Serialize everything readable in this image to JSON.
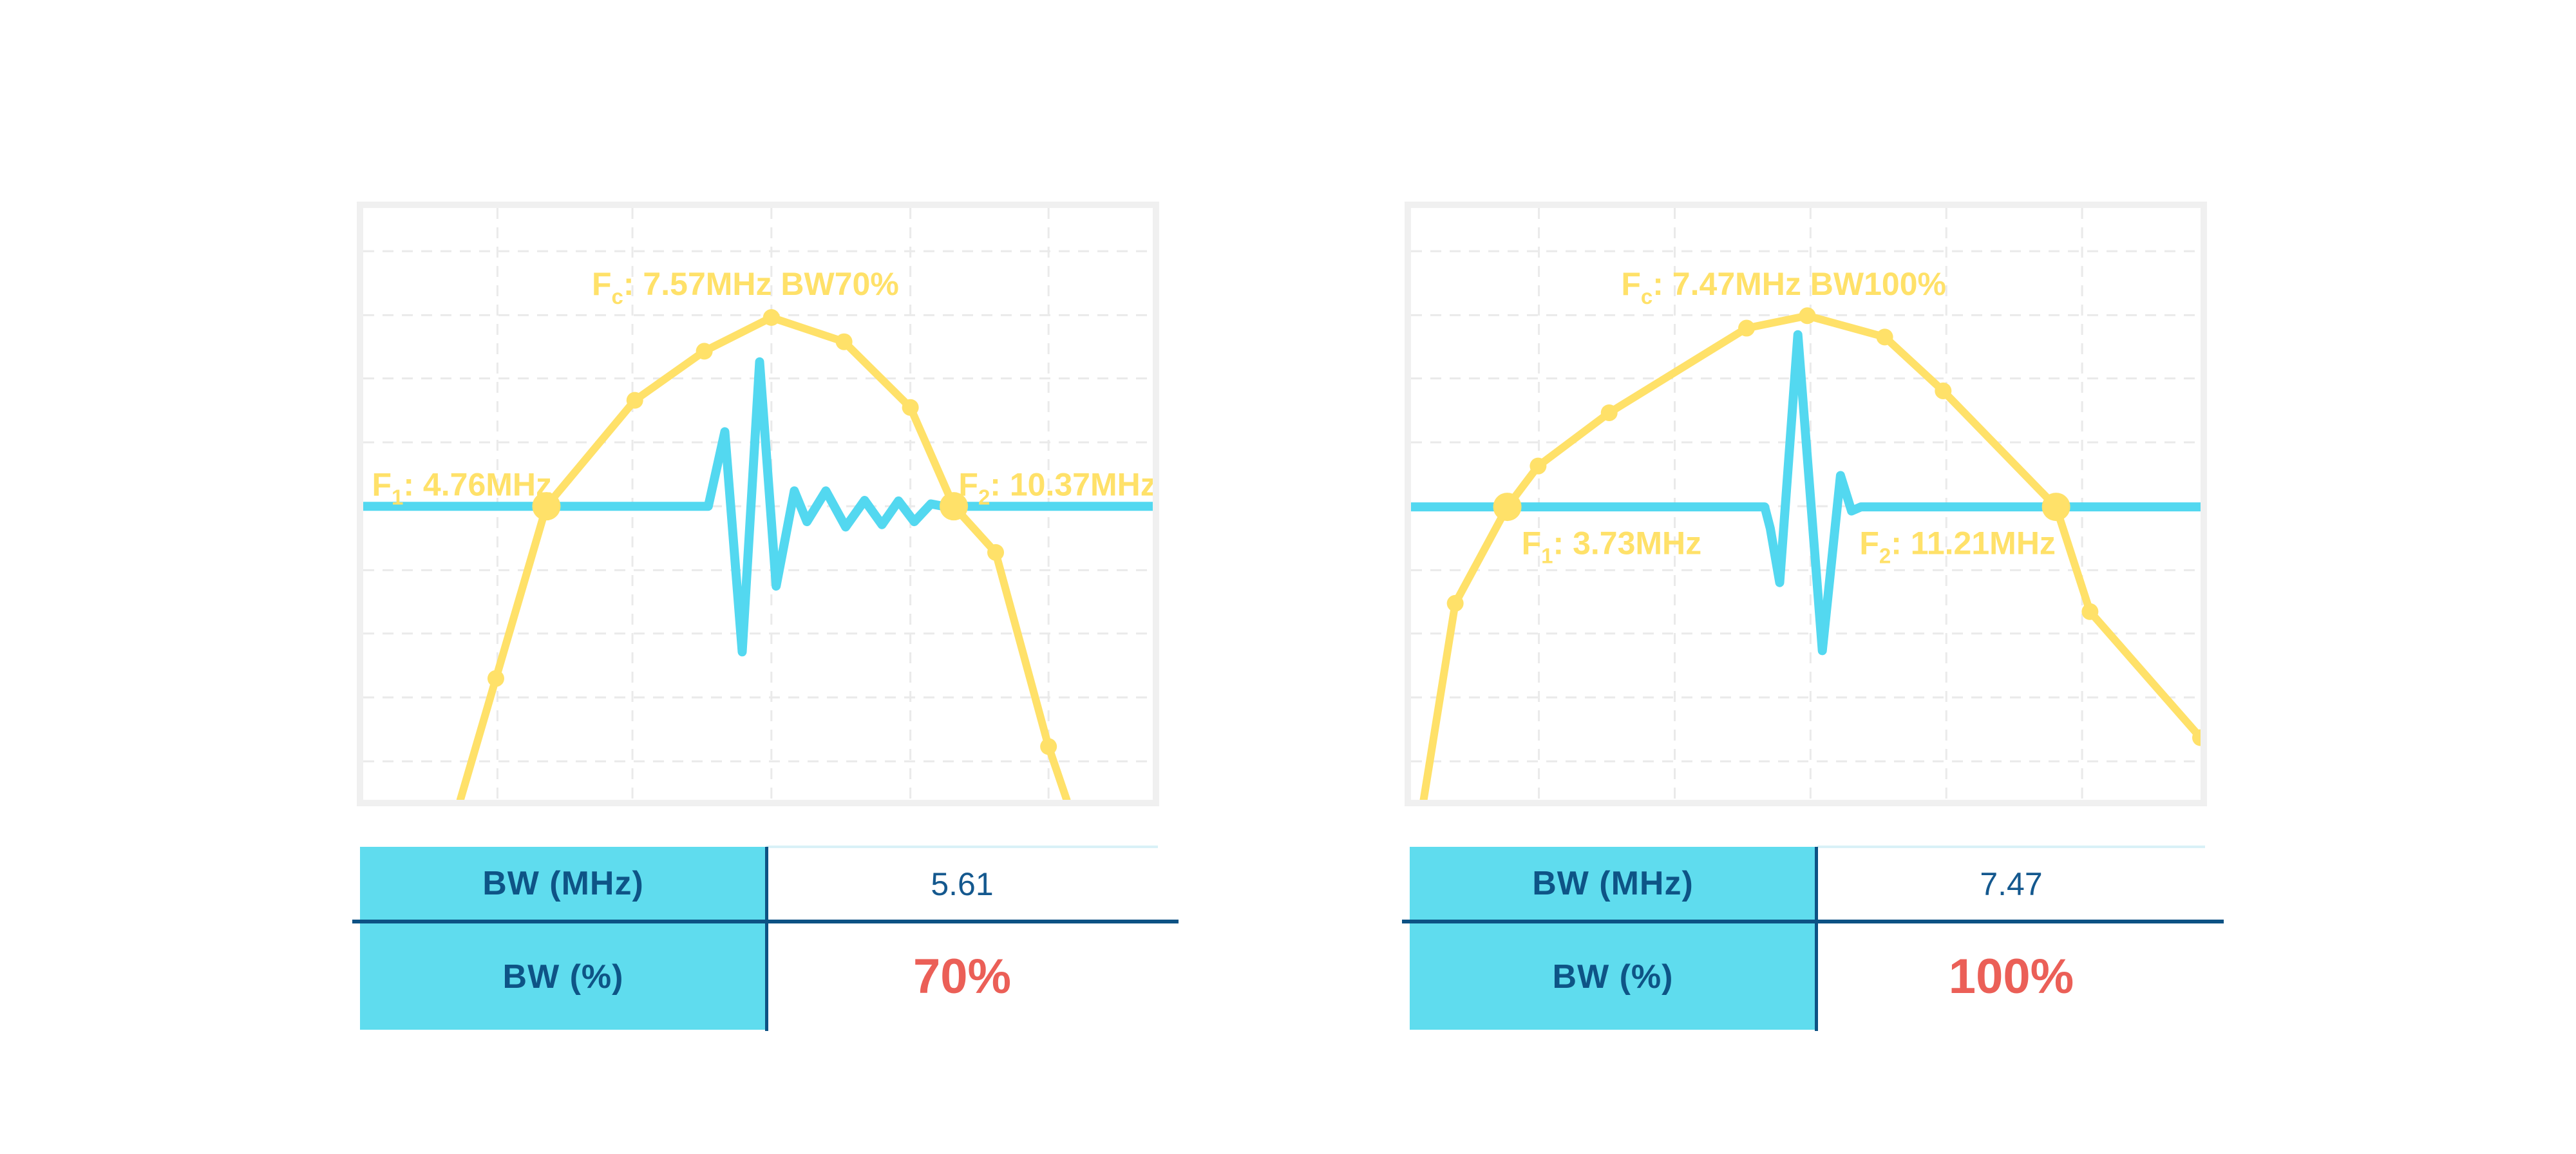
{
  "colors": {
    "yellow": "#FFE169",
    "cyan": "#53D8F0",
    "table_cyan": "#5FDCEE",
    "navy_text": "#14588E",
    "navy_line": "#0D5284",
    "red": "#EB5F57",
    "grid": "#EAEAEA",
    "panel_border": "#F0F0F0",
    "value_top_line": "#D9F1F7"
  },
  "chart_data": [
    {
      "type": "line",
      "name": "pulse-spectrum-bw70",
      "title": "Fc: 7.57MHz BW70%",
      "annotations": {
        "fc_mhz": 7.57,
        "bw_percent": 70,
        "f1_mhz": 4.76,
        "f2_mhz": 10.37,
        "bw_mhz": 5.61
      },
      "grid_x": [
        0.17,
        0.341,
        0.517,
        0.693,
        0.868
      ],
      "grid_y": [
        0.073,
        0.181,
        0.288,
        0.396,
        0.504,
        0.612,
        0.719,
        0.827,
        0.935
      ],
      "labels": [
        {
          "name": "fc-label",
          "parts": [
            "F",
            "c",
            ": 7.57MHz BW70%"
          ],
          "x": 0.484,
          "y": 0.147,
          "anchor": "middle"
        },
        {
          "name": "f1-label",
          "parts": [
            "F",
            "1",
            ": 4.76MHz"
          ],
          "x": 0.011,
          "y": 0.486,
          "anchor": "start"
        },
        {
          "name": "f2-label",
          "parts": [
            "F",
            "2",
            ": 10.37MHz"
          ],
          "x": 0.754,
          "y": 0.486,
          "anchor": "start"
        }
      ],
      "series": [
        {
          "name": "pulse-waveform",
          "color_key": "cyan",
          "width": 14,
          "points": [
            [
              0.0,
              0.504
            ],
            [
              0.437,
              0.504
            ],
            [
              0.458,
              0.378
            ],
            [
              0.48,
              0.75
            ],
            [
              0.502,
              0.26
            ],
            [
              0.523,
              0.639
            ],
            [
              0.546,
              0.478
            ],
            [
              0.562,
              0.53
            ],
            [
              0.586,
              0.478
            ],
            [
              0.611,
              0.539
            ],
            [
              0.635,
              0.494
            ],
            [
              0.657,
              0.535
            ],
            [
              0.678,
              0.495
            ],
            [
              0.698,
              0.53
            ],
            [
              0.719,
              0.5
            ],
            [
              0.735,
              0.504
            ],
            [
              1.0,
              0.504
            ]
          ]
        },
        {
          "name": "spectrum-curve",
          "color_key": "yellow",
          "width": 12,
          "points": [
            [
              0.123,
              1.0
            ],
            [
              0.168,
              0.795
            ],
            [
              0.232,
              0.504
            ],
            [
              0.344,
              0.325
            ],
            [
              0.432,
              0.242
            ],
            [
              0.517,
              0.185
            ],
            [
              0.609,
              0.226
            ],
            [
              0.693,
              0.337
            ],
            [
              0.748,
              0.504
            ],
            [
              0.801,
              0.582
            ],
            [
              0.868,
              0.91
            ],
            [
              0.891,
              1.0
            ]
          ],
          "small_markers": [
            1,
            3,
            4,
            5,
            6,
            7,
            9,
            10
          ],
          "big_markers": [
            2,
            8
          ]
        }
      ],
      "table": {
        "rows": [
          {
            "label": "BW (MHz)",
            "value": "5.61",
            "style": "navy"
          },
          {
            "label": "BW (%)",
            "value": "70%",
            "style": "red"
          }
        ]
      }
    },
    {
      "type": "line",
      "name": "pulse-spectrum-bw100",
      "title": "Fc: 7.47MHz BW100%",
      "annotations": {
        "fc_mhz": 7.47,
        "bw_percent": 100,
        "f1_mhz": 3.73,
        "f2_mhz": 11.21,
        "bw_mhz": 7.47
      },
      "grid_x": [
        0.162,
        0.334,
        0.506,
        0.678,
        0.85
      ],
      "grid_y": [
        0.073,
        0.181,
        0.288,
        0.396,
        0.504,
        0.612,
        0.719,
        0.827,
        0.935
      ],
      "labels": [
        {
          "name": "fc-label",
          "parts": [
            "F",
            "c",
            ": 7.47MHz BW100%"
          ],
          "x": 0.472,
          "y": 0.147,
          "anchor": "middle"
        },
        {
          "name": "f1-label",
          "parts": [
            "F",
            "1",
            ": 3.73MHz"
          ],
          "x": 0.14,
          "y": 0.585,
          "anchor": "start"
        },
        {
          "name": "f2-label",
          "parts": [
            "F",
            "2",
            ": 11.21MHz"
          ],
          "x": 0.568,
          "y": 0.585,
          "anchor": "start"
        }
      ],
      "series": [
        {
          "name": "pulse-waveform",
          "color_key": "cyan",
          "width": 14,
          "points": [
            [
              0.0,
              0.505
            ],
            [
              0.448,
              0.505
            ],
            [
              0.455,
              0.541
            ],
            [
              0.467,
              0.633
            ],
            [
              0.49,
              0.214
            ],
            [
              0.521,
              0.748
            ],
            [
              0.544,
              0.452
            ],
            [
              0.558,
              0.512
            ],
            [
              0.57,
              0.505
            ],
            [
              1.0,
              0.505
            ]
          ]
        },
        {
          "name": "spectrum-curve",
          "color_key": "yellow",
          "width": 12,
          "points": [
            [
              0.016,
              1.0
            ],
            [
              0.056,
              0.668
            ],
            [
              0.122,
              0.505
            ],
            [
              0.161,
              0.436
            ],
            [
              0.251,
              0.346
            ],
            [
              0.425,
              0.203
            ],
            [
              0.502,
              0.182
            ],
            [
              0.6,
              0.218
            ],
            [
              0.674,
              0.309
            ],
            [
              0.817,
              0.505
            ],
            [
              0.86,
              0.682
            ],
            [
              1.0,
              0.895
            ]
          ],
          "small_markers": [
            1,
            3,
            4,
            5,
            6,
            7,
            8,
            10,
            11
          ],
          "big_markers": [
            2,
            9
          ]
        }
      ],
      "table": {
        "rows": [
          {
            "label": "BW (MHz)",
            "value": "7.47",
            "style": "navy"
          },
          {
            "label": "BW (%)",
            "value": "100%",
            "style": "red"
          }
        ]
      }
    }
  ]
}
